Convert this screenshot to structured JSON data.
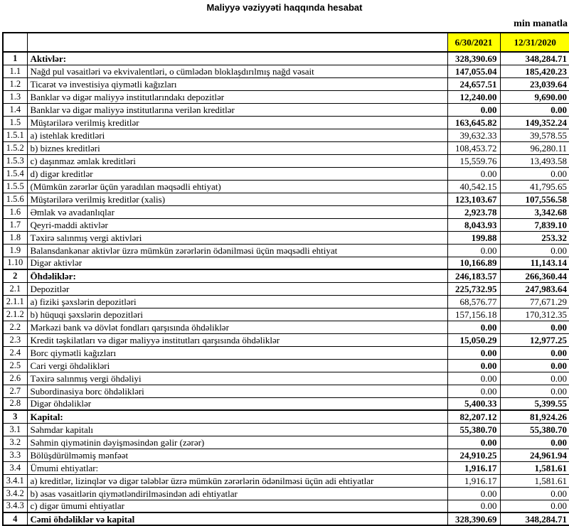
{
  "report": {
    "title": "Maliyyə vəziyyəti haqqında hesabat",
    "units_label": "min manatla",
    "columns": [
      "6/30/2021",
      "12/31/2020"
    ],
    "colors": {
      "header_fill": "#FFFF00",
      "border": "#000000",
      "background": "#FFFFFF"
    },
    "rows": [
      {
        "no": "1",
        "label": "Aktivlər:",
        "values": [
          "328,390.69",
          "348,284.71"
        ],
        "label_bold": true,
        "values_bold": true,
        "section": true
      },
      {
        "no": "1.1",
        "label": "Nağd pul vəsaitləri və  ekvivalentləri, o cümlədən bloklaşdırılmış nağd vəsait",
        "values": [
          "147,055.04",
          "185,420.23"
        ],
        "label_bold": false,
        "values_bold": true,
        "section": false
      },
      {
        "no": "1.2",
        "label": "Ticarət və investisiya qiymətli kağızları",
        "values": [
          "24,657.51",
          "23,039.64"
        ],
        "label_bold": false,
        "values_bold": true,
        "section": false
      },
      {
        "no": "1.3",
        "label": "Banklar və digər maliyyə institutlarındakı depozitlər",
        "values": [
          "12,240.00",
          "9,690.00"
        ],
        "label_bold": false,
        "values_bold": true,
        "section": false
      },
      {
        "no": "1.4",
        "label": "Banklar və digər maliyyə institutlarına verilən kreditlər",
        "values": [
          "0.00",
          "0.00"
        ],
        "label_bold": false,
        "values_bold": true,
        "section": false
      },
      {
        "no": "1.5",
        "label": "Müştərilərə verilmiş kreditlər",
        "values": [
          "163,645.82",
          "149,352.24"
        ],
        "label_bold": false,
        "values_bold": true,
        "section": false
      },
      {
        "no": "1.5.1",
        "label": "a) istehlak kreditləri",
        "values": [
          "39,632.33",
          "39,578.55"
        ],
        "label_bold": false,
        "values_bold": false,
        "section": false
      },
      {
        "no": "1.5.2",
        "label": "b) biznes kreditləri",
        "values": [
          "108,453.72",
          "96,280.11"
        ],
        "label_bold": false,
        "values_bold": false,
        "section": false
      },
      {
        "no": "1.5.3",
        "label": "c) daşınmaz əmlak kreditləri",
        "values": [
          "15,559.76",
          "13,493.58"
        ],
        "label_bold": false,
        "values_bold": false,
        "section": false
      },
      {
        "no": "1.5.4",
        "label": "d) digər kreditlər",
        "values": [
          "0.00",
          "0.00"
        ],
        "label_bold": false,
        "values_bold": false,
        "section": false
      },
      {
        "no": "1.5.5",
        "label": "(Mümkün zərərlər üçün yaradılan məqsədli ehtiyat)",
        "values": [
          "40,542.15",
          "41,795.65"
        ],
        "label_bold": false,
        "values_bold": false,
        "section": false
      },
      {
        "no": "1.5.6",
        "label": "Müştərilərə verilmiş kreditlər (xalis)",
        "values": [
          "123,103.67",
          "107,556.58"
        ],
        "label_bold": false,
        "values_bold": true,
        "section": false
      },
      {
        "no": "1.6",
        "label": "Əmlak və avadanlıqlar",
        "values": [
          "2,923.78",
          "3,342.68"
        ],
        "label_bold": false,
        "values_bold": true,
        "section": false
      },
      {
        "no": "1.7",
        "label": "Qeyri-maddi aktivlər",
        "values": [
          "8,043.93",
          "7,839.10"
        ],
        "label_bold": false,
        "values_bold": true,
        "section": false
      },
      {
        "no": "1.8",
        "label": "Təxirə salınmış vergi aktivləri",
        "values": [
          "199.88",
          "253.32"
        ],
        "label_bold": false,
        "values_bold": true,
        "section": false
      },
      {
        "no": "1.9",
        "label": "Balansdankənar aktivlər üzrə mümkün zərərlərin ödənilməsi üçün məqsədli ehtiyat",
        "values": [
          "0.00",
          "0.00"
        ],
        "label_bold": false,
        "values_bold": false,
        "section": false
      },
      {
        "no": "1.10",
        "label": "Digər aktivlər",
        "values": [
          "10,166.89",
          "11,143.14"
        ],
        "label_bold": false,
        "values_bold": true,
        "section": false
      },
      {
        "no": "2",
        "label": "Öhdəliklər:",
        "values": [
          "246,183.57",
          "266,360.44"
        ],
        "label_bold": true,
        "values_bold": true,
        "section": true
      },
      {
        "no": "2.1",
        "label": "Depozitlər",
        "values": [
          "225,732.95",
          "247,983.64"
        ],
        "label_bold": false,
        "values_bold": true,
        "section": false
      },
      {
        "no": "2.1.1",
        "label": "a) fiziki şəxslərin depozitləri",
        "values": [
          "68,576.77",
          "77,671.29"
        ],
        "label_bold": false,
        "values_bold": false,
        "section": false
      },
      {
        "no": "2.1.2",
        "label": "b) hüquqi şəxslərin depozitləri",
        "values": [
          "157,156.18",
          "170,312.35"
        ],
        "label_bold": false,
        "values_bold": false,
        "section": false
      },
      {
        "no": "2.2",
        "label": "Mərkəzi bank və dövlət fondları qarşısında öhdəliklər",
        "values": [
          "0.00",
          "0.00"
        ],
        "label_bold": false,
        "values_bold": true,
        "section": false
      },
      {
        "no": "2.3",
        "label": "Kredit təşkilatları və digər maliyyə institutları qarşısında öhdəliklər",
        "values": [
          "15,050.29",
          "12,977.25"
        ],
        "label_bold": false,
        "values_bold": true,
        "section": false
      },
      {
        "no": "2.4",
        "label": "Borc qiymətli kağızları",
        "values": [
          "0.00",
          "0.00"
        ],
        "label_bold": false,
        "values_bold": true,
        "section": false
      },
      {
        "no": "2.5",
        "label": "Cari vergi öhdəlikləri",
        "values": [
          "0.00",
          "0.00"
        ],
        "label_bold": false,
        "values_bold": true,
        "section": false
      },
      {
        "no": "2.6",
        "label": "Təxirə salınmış vergi öhdəliyi",
        "values": [
          "0.00",
          "0.00"
        ],
        "label_bold": false,
        "values_bold": false,
        "section": false
      },
      {
        "no": "2.7",
        "label": "Subordinasiya borc öhdəlikləri",
        "values": [
          "0.00",
          "0.00"
        ],
        "label_bold": false,
        "values_bold": false,
        "section": false
      },
      {
        "no": "2.8",
        "label": "Digər öhdəliklər",
        "values": [
          "5,400.33",
          "5,399.55"
        ],
        "label_bold": false,
        "values_bold": true,
        "section": false
      },
      {
        "no": "3",
        "label": "Kapital:",
        "values": [
          "82,207.12",
          "81,924.26"
        ],
        "label_bold": true,
        "values_bold": true,
        "section": true
      },
      {
        "no": "3.1",
        "label": "Səhmdar kapitalı",
        "values": [
          "55,380.70",
          "55,380.70"
        ],
        "label_bold": false,
        "values_bold": true,
        "section": false
      },
      {
        "no": "3.2",
        "label": "Səhmin qiymətinin dəyişməsindən gəlir (zərər)",
        "values": [
          "0.00",
          "0.00"
        ],
        "label_bold": false,
        "values_bold": true,
        "section": false
      },
      {
        "no": "3.3",
        "label": "Bölüşdürülməmiş mənfəət",
        "values": [
          "24,910.25",
          "24,961.94"
        ],
        "label_bold": false,
        "values_bold": true,
        "section": false
      },
      {
        "no": "3.4",
        "label": "Ümumi ehtiyatlar:",
        "values": [
          "1,916.17",
          "1,581.61"
        ],
        "label_bold": false,
        "values_bold": true,
        "section": false
      },
      {
        "no": "3.4.1",
        "label": "a) kreditlər, lizinqlər və digər tələblər üzrə mümkün zərərlərin ödənilməsi üçün adi ehtiyatlar",
        "values": [
          "1,916.17",
          "1,581.61"
        ],
        "label_bold": false,
        "values_bold": false,
        "section": false
      },
      {
        "no": "3.4.2",
        "label": "b) əsas vəsaitlərin qiymətləndirilməsindən adi ehtiyatlar",
        "values": [
          "0.00",
          "0.00"
        ],
        "label_bold": false,
        "values_bold": false,
        "section": false
      },
      {
        "no": "3.4.3",
        "label": "c) digər ümumi ehtiyatlar",
        "values": [
          "0.00",
          "0.00"
        ],
        "label_bold": false,
        "values_bold": false,
        "section": false
      },
      {
        "no": "4",
        "label": "Cəmi öhdəliklər və kapital",
        "values": [
          "328,390.69",
          "348,284.71"
        ],
        "label_bold": true,
        "values_bold": true,
        "section": true
      }
    ]
  }
}
